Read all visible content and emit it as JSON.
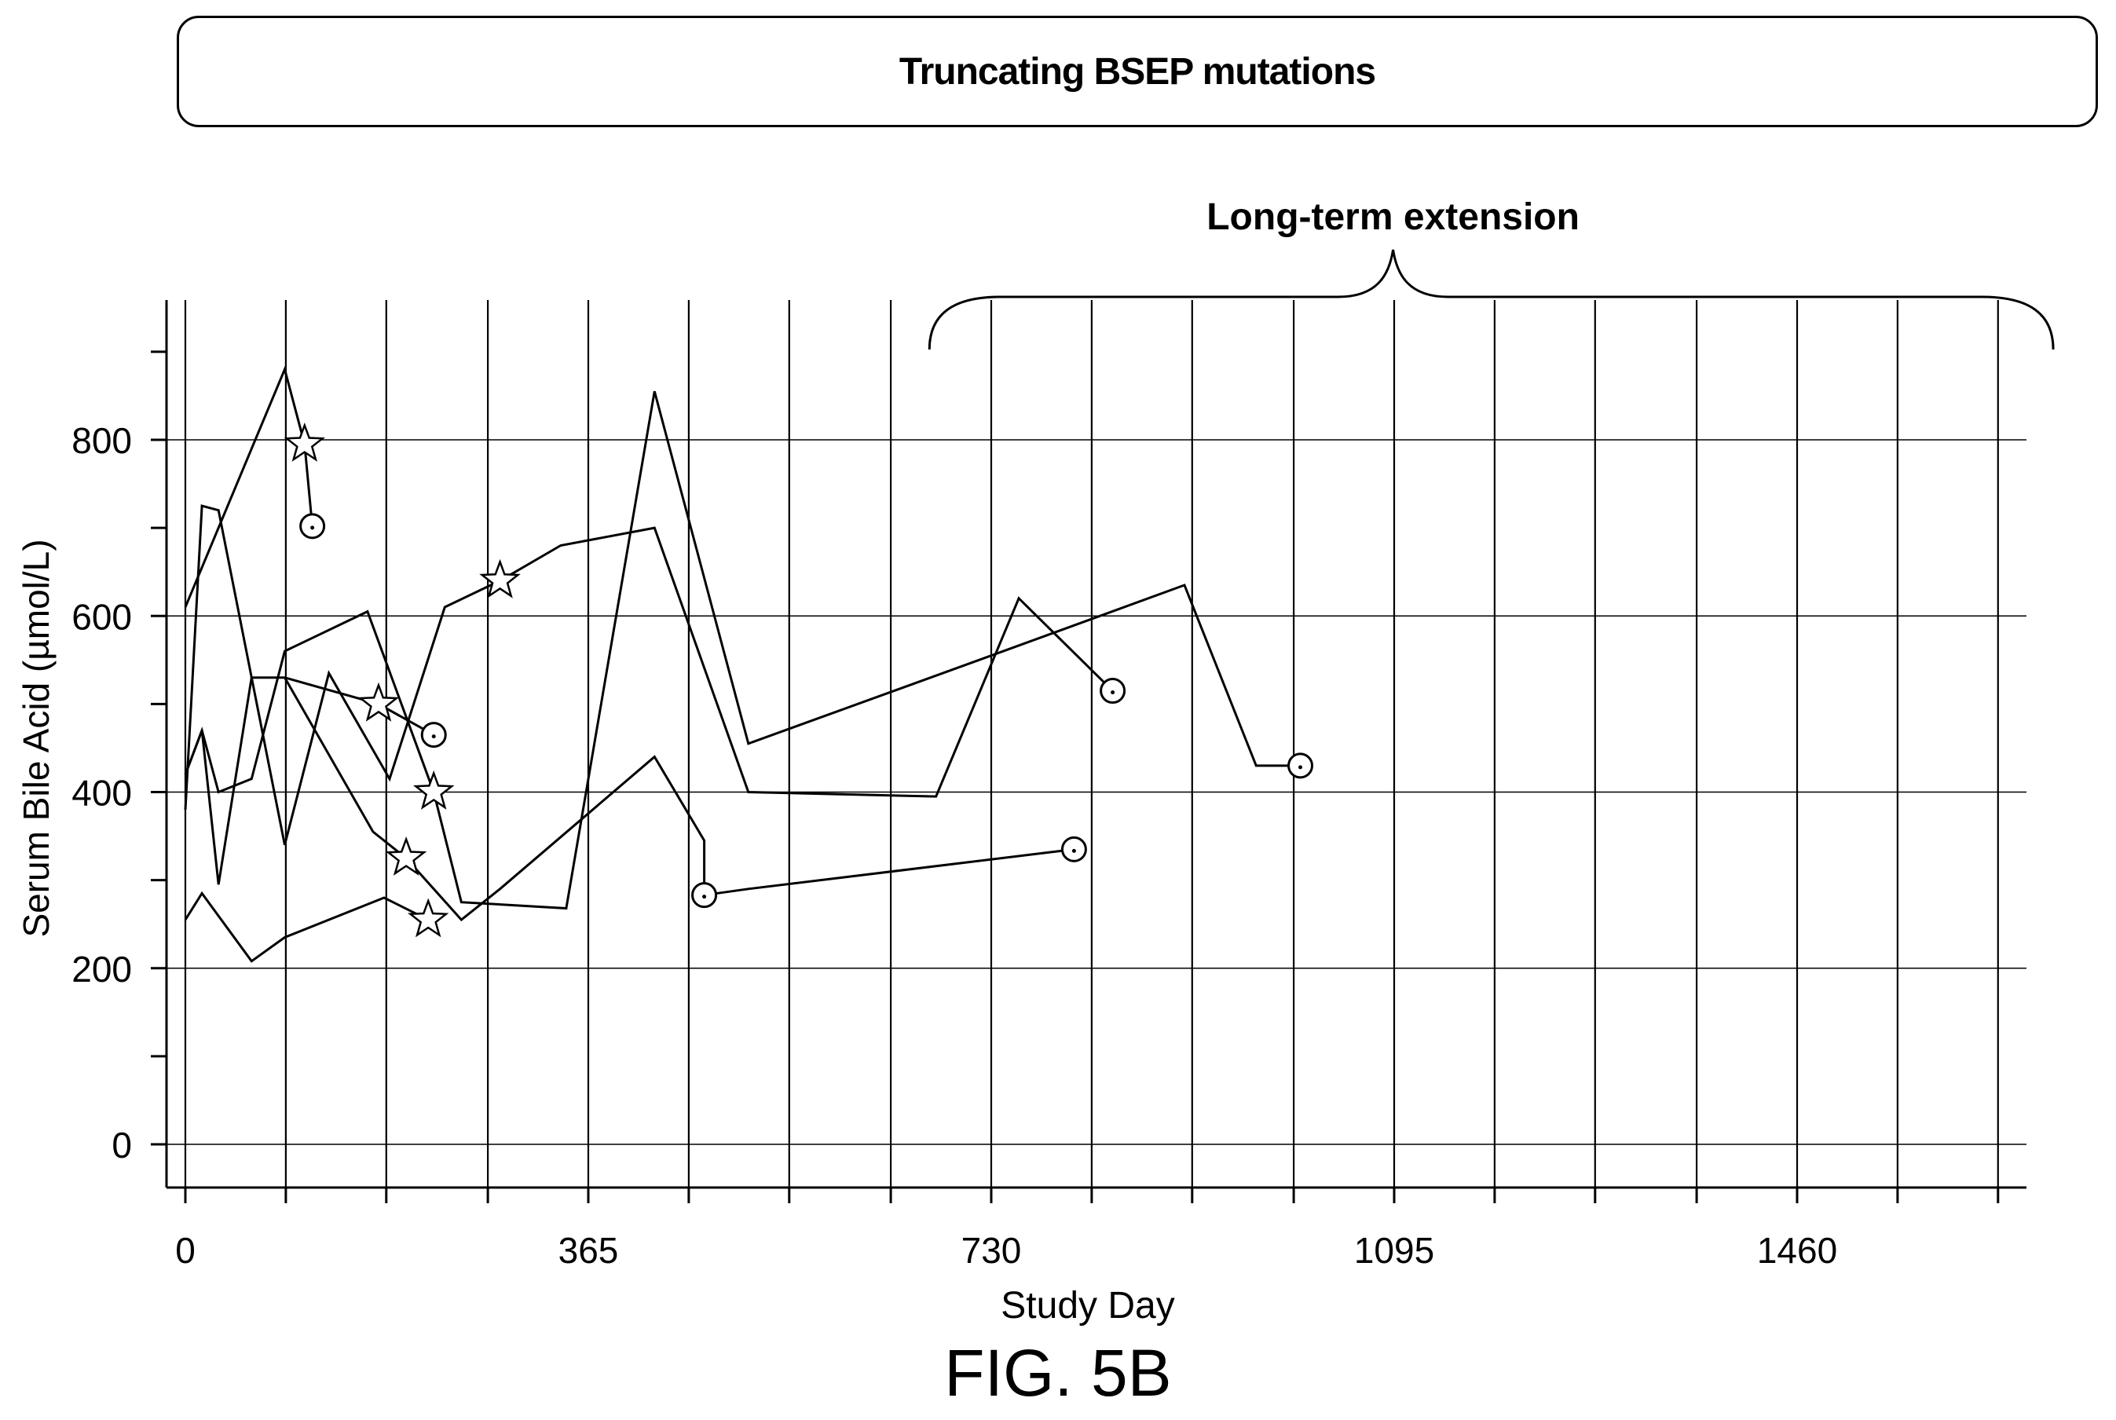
{
  "figure_label": "FIG. 5B",
  "chart_data": {
    "type": "line",
    "title": "Truncating BSEP mutations",
    "annotation": "Long-term extension",
    "xlabel": "Study Day",
    "ylabel": "Serum Bile Acid (µmol/L)",
    "xlim": [
      -10,
      1670
    ],
    "ylim": [
      -50,
      920
    ],
    "xticks": [
      0,
      365,
      730,
      1095,
      1460
    ],
    "yticks": [
      0,
      200,
      400,
      600,
      800
    ],
    "grid": true,
    "x_gridlines": [
      0,
      91,
      182,
      274,
      365,
      456,
      547,
      639,
      730,
      821,
      912,
      1004,
      1095,
      1186,
      1277,
      1369,
      1460,
      1551,
      1642
    ],
    "y_gridlines": [
      0,
      200,
      400,
      600,
      800
    ],
    "marker_legend": {
      "star": "star marker",
      "circle": "circle marker"
    },
    "series": [
      {
        "values": [
          [
            0,
            380
          ],
          [
            15,
            725
          ],
          [
            30,
            720
          ],
          [
            90,
            340
          ],
          [
            130,
            535
          ],
          [
            185,
            415
          ],
          [
            235,
            610
          ],
          [
            285,
            640
          ],
          [
            340,
            680
          ],
          [
            425,
            700
          ],
          [
            510,
            400
          ],
          [
            680,
            395
          ],
          [
            755,
            620
          ],
          [
            840,
            515
          ]
        ],
        "markers": [
          {
            "x": 285,
            "y": 640,
            "shape": "star"
          },
          {
            "x": 840,
            "y": 515,
            "shape": "circle"
          }
        ]
      },
      {
        "values": [
          [
            0,
            610
          ],
          [
            90,
            880
          ],
          [
            108,
            795
          ],
          [
            115,
            702
          ]
        ],
        "markers": [
          {
            "x": 108,
            "y": 795,
            "shape": "star"
          },
          {
            "x": 115,
            "y": 702,
            "shape": "circle"
          }
        ]
      },
      {
        "values": [
          [
            0,
            420
          ],
          [
            15,
            470
          ],
          [
            30,
            295
          ],
          [
            60,
            530
          ],
          [
            90,
            530
          ],
          [
            175,
            500
          ],
          [
            225,
            465
          ]
        ],
        "markers": [
          {
            "x": 175,
            "y": 500,
            "shape": "star"
          },
          {
            "x": 225,
            "y": 465,
            "shape": "circle"
          }
        ]
      },
      {
        "values": [
          [
            0,
            420
          ],
          [
            15,
            470
          ],
          [
            30,
            400
          ],
          [
            60,
            415
          ],
          [
            90,
            560
          ],
          [
            165,
            605
          ],
          [
            225,
            400
          ],
          [
            250,
            275
          ],
          [
            345,
            268
          ],
          [
            425,
            855
          ],
          [
            510,
            455
          ],
          [
            730,
            555
          ],
          [
            905,
            635
          ],
          [
            970,
            430
          ],
          [
            1010,
            430
          ]
        ],
        "markers": [
          {
            "x": 225,
            "y": 400,
            "shape": "star"
          },
          {
            "x": 1010,
            "y": 430,
            "shape": "circle"
          }
        ]
      },
      {
        "values": [
          [
            0,
            255
          ],
          [
            15,
            285
          ],
          [
            60,
            208
          ],
          [
            90,
            235
          ],
          [
            180,
            280
          ],
          [
            220,
            255
          ]
        ],
        "markers": [
          {
            "x": 220,
            "y": 255,
            "shape": "star"
          }
        ]
      },
      {
        "values": [
          [
            90,
            530
          ],
          [
            170,
            355
          ],
          [
            200,
            325
          ],
          [
            250,
            255
          ],
          [
            285,
            290
          ],
          [
            425,
            440
          ],
          [
            470,
            345
          ],
          [
            470,
            283
          ],
          [
            510,
            290
          ],
          [
            805,
            335
          ]
        ],
        "markers": [
          {
            "x": 200,
            "y": 325,
            "shape": "star"
          },
          {
            "x": 470,
            "y": 283,
            "shape": "circle"
          },
          {
            "x": 805,
            "y": 335,
            "shape": "circle"
          }
        ]
      }
    ]
  }
}
